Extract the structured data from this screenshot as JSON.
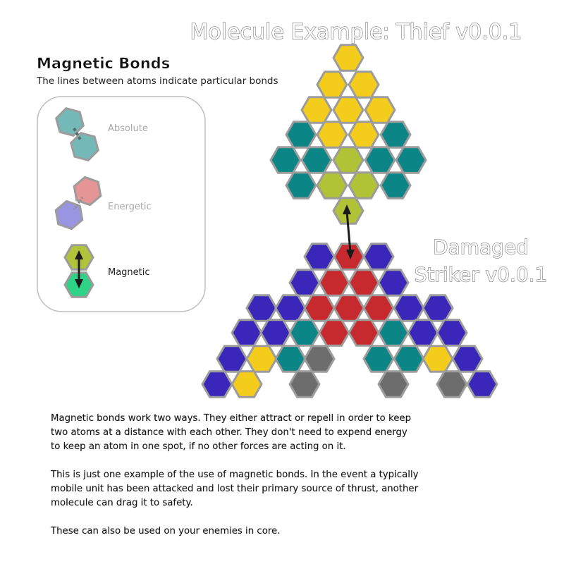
{
  "title": "Molecule Example: Thief v0.0.1",
  "secondary_title": "Damaged Striker v0.0.1",
  "secondary_title_lines": [
    "Damaged",
    "Striker v0.0.1"
  ],
  "legend": {
    "heading": "Magnetic Bonds",
    "subheading": "The lines between atoms indicate particular bonds",
    "items": [
      {
        "label": "Absolute",
        "label_color": "#a8a8a8"
      },
      {
        "label": "Energetic",
        "label_color": "#a8a8a8"
      },
      {
        "label": "Magnetic",
        "label_color": "#222222"
      }
    ]
  },
  "colors": {
    "yellow": "#f4cd1c",
    "teal": "#0b8585",
    "lime": "#b0c236",
    "red": "#c62a2e",
    "blue": "#3a26b8",
    "gray": "#6d6d6d",
    "legend_teal": "#74b8b8",
    "legend_pink": "#e69596",
    "legend_purple": "#9995e0",
    "legend_lime": "#afc43a",
    "legend_green": "#2fd388",
    "hex_stroke": "#9c9c9c"
  },
  "description": {
    "paragraphs": [
      [
        "Magnetic bonds work two ways.  They either attract or repell in order to keep",
        "two atoms at a distance with each other.  They don't need to expend energy",
        "to keep an atom in one spot, if no other forces are acting on it."
      ],
      [
        "This is just one example of the use of magnetic bonds.  In the event a typically",
        "mobile unit has been attacked and lost their primary source of thrust, another",
        "molecule can drag it to safety."
      ],
      [
        "These can also be used on your enemies in core."
      ]
    ]
  }
}
